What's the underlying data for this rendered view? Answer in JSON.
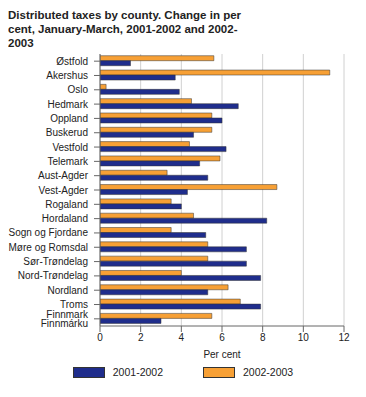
{
  "chart_data": {
    "type": "bar",
    "orientation": "horizontal",
    "title": "Distributed taxes by county. Change in per cent, January-March, 2001-2002 and 2002-2003",
    "x_label": "Per cent",
    "categories": [
      "Østfold",
      "Akershus",
      "Oslo",
      "Hedmark",
      "Oppland",
      "Buskerud",
      "Vestfold",
      "Telemark",
      "Aust-Agder",
      "Vest-Agder",
      "Rogaland",
      "Hordaland",
      "Sogn og Fjordane",
      "Møre og Romsdal",
      "Sør-Trøndelag",
      "Nord-Trøndelag",
      "Nordland",
      "Troms",
      "Finnmark\nFinnmárku"
    ],
    "series": [
      {
        "name": "2001-2002",
        "color": "#1f2d8c",
        "values": [
          1.5,
          3.7,
          3.9,
          6.8,
          6.0,
          4.6,
          6.2,
          4.9,
          5.3,
          4.3,
          4.0,
          8.2,
          5.2,
          7.2,
          7.2,
          7.9,
          5.3,
          7.9,
          3.0
        ]
      },
      {
        "name": "2002-2003",
        "color": "#f7a035",
        "values": [
          5.6,
          11.3,
          0.3,
          4.5,
          5.5,
          5.5,
          4.4,
          5.9,
          3.3,
          8.7,
          3.5,
          4.6,
          3.5,
          5.3,
          5.3,
          4.0,
          6.3,
          6.9,
          5.5
        ]
      }
    ],
    "xlim": [
      0,
      12
    ],
    "xticks": [
      0,
      2,
      4,
      6,
      8,
      10,
      12
    ],
    "grid": true,
    "legend": "bottom"
  }
}
